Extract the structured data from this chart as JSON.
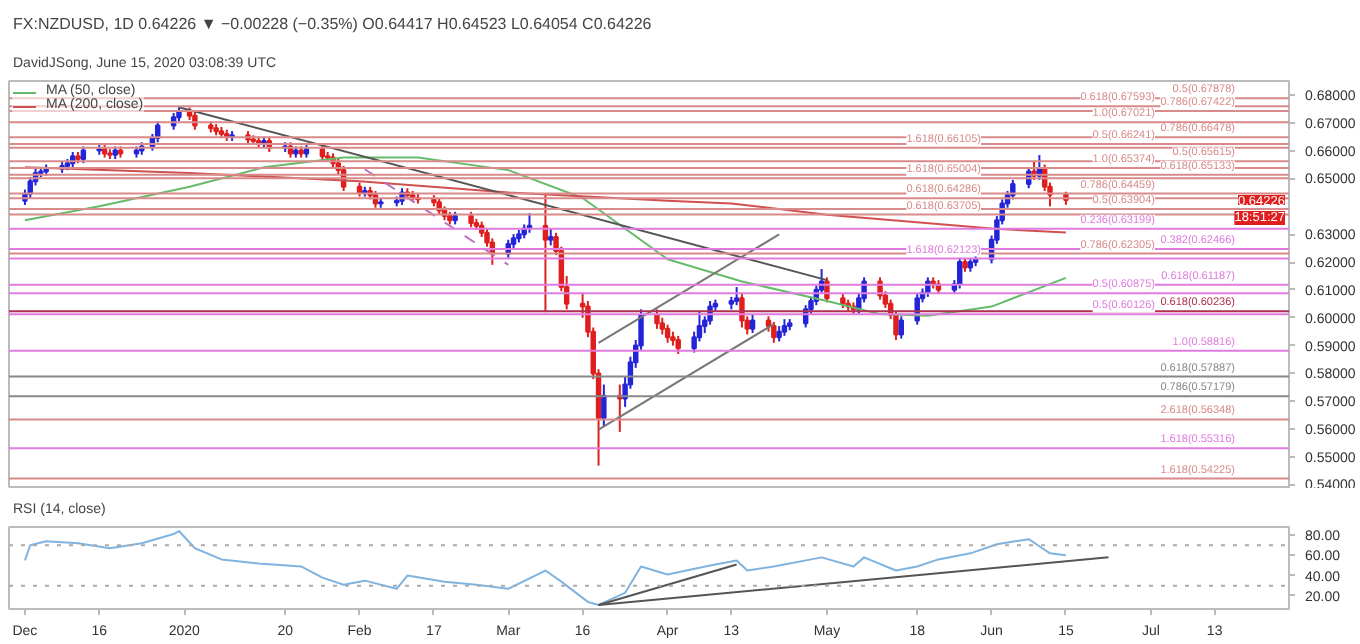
{
  "chart_data": [
    {
      "type": "candlestick",
      "title": "FX:NZDUSD, 1D  0.64226 ▼ −0.00228 (−0.35%)  O0.64417  H0.64523  L0.64054  C0.64226",
      "subtitle": "DavidJSong, June 15, 2020 03:08:39 UTC",
      "colors": [
        "#2424d8",
        "#2424d8",
        "#2424d8",
        "#2424d8",
        "#2424d8",
        "#2424d8",
        "#2424d8",
        "#2424d8",
        "#e01e1e",
        "#2424d8",
        "#2424d8",
        "#e01e1e",
        "#e01e1e",
        "#2424d8",
        "#e01e1e",
        "#2424d8",
        "#2424d8",
        "#2424d8",
        "#2424d8",
        "#2424d8",
        "#2424d8",
        "#e01e1e",
        "#e01e1e",
        "#e01e1e",
        "#e01e1e",
        "#e01e1e",
        "#e01e1e",
        "#2424d8",
        "#e01e1e",
        "#e01e1e",
        "#e01e1e",
        "#2424d8",
        "#e01e1e",
        "#2424d8",
        "#e01e1e",
        "#2424d8",
        "#e01e1e",
        "#2424d8",
        "#e01e1e",
        "#e01e1e",
        "#e01e1e",
        "#e01e1e",
        "#e01e1e",
        "#e01e1e",
        "#2424d8",
        "#e01e1e",
        "#e01e1e",
        "#2424d8",
        "#2424d8",
        "#2424d8",
        "#e01e1e",
        "#e01e1e",
        "#e01e1e",
        "#e01e1e",
        "#e01e1e",
        "#e01e1e",
        "#e01e1e",
        "#2424d8",
        "#e01e1e",
        "#e01e1e",
        "#e01e1e",
        "#e01e1e",
        "#e01e1e",
        "#2424d8",
        "#2424d8",
        "#2424d8",
        "#2424d8",
        "#2424d8",
        "#e01e1e",
        "#2424d8",
        "#e01e1e",
        "#e01e1e",
        "#e01e1e",
        "#e01e1e",
        "#e01e1e",
        "#e01e1e",
        "#e01e1e",
        "#2424d8",
        "#e01e1e",
        "#2424d8",
        "#2424d8",
        "#2424d8",
        "#2424d8",
        "#e01e1e",
        "#e01e1e",
        "#e01e1e",
        "#e01e1e",
        "#e01e1e",
        "#2424d8",
        "#2424d8",
        "#2424d8",
        "#2424d8",
        "#2424d8",
        "#2424d8",
        "#2424d8",
        "#e01e1e",
        "#e01e1e",
        "#2424d8",
        "#e01e1e",
        "#e01e1e",
        "#2424d8",
        "#2424d8",
        "#2424d8",
        "#2424d8",
        "#2424d8",
        "#2424d8",
        "#2424d8",
        "#e01e1e",
        "#e01e1e",
        "#e01e1e",
        "#e01e1e",
        "#2424d8",
        "#2424d8",
        "#e01e1e",
        "#e01e1e",
        "#e01e1e",
        "#e01e1e",
        "#2424d8",
        "#2424d8",
        "#2424d8",
        "#2424d8",
        "#e01e1e",
        "#e01e1e",
        "#2424d8",
        "#2424d8",
        "#e01e1e",
        "#2424d8",
        "#2424d8",
        "#2424d8",
        "#2424d8",
        "#2424d8",
        "#2424d8",
        "#2424d8",
        "#2424d8",
        "#e01e1e",
        "#2424d8",
        "#e01e1e",
        "#e01e1e",
        "#e01e1e"
      ],
      "x": [
        "2019-12-02",
        "2019-12-03",
        "2019-12-04",
        "2019-12-05",
        "2019-12-06",
        "2019-12-09",
        "2019-12-10",
        "2019-12-11",
        "2019-12-12",
        "2019-12-13",
        "2019-12-16",
        "2019-12-17",
        "2019-12-18",
        "2019-12-19",
        "2019-12-20",
        "2019-12-23",
        "2019-12-24",
        "2019-12-26",
        "2019-12-27",
        "2019-12-30",
        "2019-12-31",
        "2020-01-02",
        "2020-01-03",
        "2020-01-06",
        "2020-01-07",
        "2020-01-08",
        "2020-01-09",
        "2020-01-10",
        "2020-01-13",
        "2020-01-14",
        "2020-01-15",
        "2020-01-16",
        "2020-01-17",
        "2020-01-20",
        "2020-01-21",
        "2020-01-22",
        "2020-01-23",
        "2020-01-24",
        "2020-01-27",
        "2020-01-28",
        "2020-01-29",
        "2020-01-30",
        "2020-01-31",
        "2020-02-03",
        "2020-02-04",
        "2020-02-05",
        "2020-02-06",
        "2020-02-07",
        "2020-02-10",
        "2020-02-11",
        "2020-02-12",
        "2020-02-13",
        "2020-02-14",
        "2020-02-17",
        "2020-02-18",
        "2020-02-19",
        "2020-02-20",
        "2020-02-21",
        "2020-02-24",
        "2020-02-25",
        "2020-02-26",
        "2020-02-27",
        "2020-02-28",
        "2020-03-02",
        "2020-03-03",
        "2020-03-04",
        "2020-03-05",
        "2020-03-06",
        "2020-03-09",
        "2020-03-10",
        "2020-03-11",
        "2020-03-12",
        "2020-03-13",
        "2020-03-16",
        "2020-03-17",
        "2020-03-18",
        "2020-03-19",
        "2020-03-20",
        "2020-03-23",
        "2020-03-24",
        "2020-03-25",
        "2020-03-26",
        "2020-03-27",
        "2020-03-30",
        "2020-03-31",
        "2020-04-01",
        "2020-04-02",
        "2020-04-03",
        "2020-04-06",
        "2020-04-07",
        "2020-04-08",
        "2020-04-09",
        "2020-04-10",
        "2020-04-13",
        "2020-04-14",
        "2020-04-15",
        "2020-04-16",
        "2020-04-17",
        "2020-04-20",
        "2020-04-21",
        "2020-04-22",
        "2020-04-23",
        "2020-04-24",
        "2020-04-27",
        "2020-04-28",
        "2020-04-29",
        "2020-04-30",
        "2020-05-01",
        "2020-05-04",
        "2020-05-05",
        "2020-05-06",
        "2020-05-07",
        "2020-05-08",
        "2020-05-11",
        "2020-05-12",
        "2020-05-13",
        "2020-05-14",
        "2020-05-15",
        "2020-05-18",
        "2020-05-19",
        "2020-05-20",
        "2020-05-21",
        "2020-05-22",
        "2020-05-25",
        "2020-05-26",
        "2020-05-27",
        "2020-05-28",
        "2020-05-29",
        "2020-06-01",
        "2020-06-02",
        "2020-06-03",
        "2020-06-04",
        "2020-06-05",
        "2020-06-08",
        "2020-06-09",
        "2020-06-10",
        "2020-06-11",
        "2020-06-12",
        "2020-06-15"
      ],
      "ohlc": [
        [
          0.642,
          0.646,
          0.6405,
          0.6445
        ],
        [
          0.6445,
          0.6505,
          0.643,
          0.649
        ],
        [
          0.649,
          0.6535,
          0.6475,
          0.652
        ],
        [
          0.652,
          0.654,
          0.6505,
          0.6525
        ],
        [
          0.6525,
          0.655,
          0.651,
          0.6535
        ],
        [
          0.6535,
          0.656,
          0.652,
          0.6545
        ],
        [
          0.6545,
          0.657,
          0.653,
          0.6555
        ],
        [
          0.6555,
          0.6595,
          0.654,
          0.658
        ],
        [
          0.658,
          0.6595,
          0.6555,
          0.657
        ],
        [
          0.657,
          0.6615,
          0.6555,
          0.66
        ],
        [
          0.66,
          0.662,
          0.6585,
          0.6605
        ],
        [
          0.6605,
          0.662,
          0.6575,
          0.659
        ],
        [
          0.659,
          0.6605,
          0.657,
          0.6585
        ],
        [
          0.6585,
          0.6615,
          0.657,
          0.66
        ],
        [
          0.66,
          0.6615,
          0.6575,
          0.659
        ],
        [
          0.659,
          0.6615,
          0.6575,
          0.66
        ],
        [
          0.66,
          0.663,
          0.6585,
          0.6615
        ],
        [
          0.6615,
          0.666,
          0.66,
          0.6645
        ],
        [
          0.6645,
          0.6705,
          0.663,
          0.669
        ],
        [
          0.669,
          0.6735,
          0.6675,
          0.672
        ],
        [
          0.672,
          0.6756,
          0.6705,
          0.674
        ],
        [
          0.674,
          0.6755,
          0.671,
          0.6725
        ],
        [
          0.6725,
          0.674,
          0.6675,
          0.669
        ],
        [
          0.669,
          0.6705,
          0.6665,
          0.668
        ],
        [
          0.668,
          0.6695,
          0.6655,
          0.667
        ],
        [
          0.667,
          0.6685,
          0.6645,
          0.666
        ],
        [
          0.666,
          0.6675,
          0.6635,
          0.665
        ],
        [
          0.665,
          0.667,
          0.6635,
          0.6655
        ],
        [
          0.6655,
          0.667,
          0.6625,
          0.664
        ],
        [
          0.664,
          0.6655,
          0.662,
          0.6635
        ],
        [
          0.6635,
          0.665,
          0.661,
          0.6625
        ],
        [
          0.6625,
          0.665,
          0.661,
          0.6635
        ],
        [
          0.6635,
          0.665,
          0.6595,
          0.661
        ],
        [
          0.661,
          0.663,
          0.6595,
          0.6615
        ],
        [
          0.6615,
          0.663,
          0.6575,
          0.659
        ],
        [
          0.659,
          0.6615,
          0.6575,
          0.66
        ],
        [
          0.66,
          0.6615,
          0.6575,
          0.659
        ],
        [
          0.659,
          0.662,
          0.6575,
          0.6605
        ],
        [
          0.6605,
          0.662,
          0.6565,
          0.658
        ],
        [
          0.658,
          0.6595,
          0.656,
          0.6575
        ],
        [
          0.6575,
          0.659,
          0.654,
          0.6555
        ],
        [
          0.6555,
          0.657,
          0.6515,
          0.653
        ],
        [
          0.653,
          0.6545,
          0.6455,
          0.647
        ],
        [
          0.647,
          0.6485,
          0.6435,
          0.645
        ],
        [
          0.645,
          0.647,
          0.6435,
          0.6455
        ],
        [
          0.6455,
          0.647,
          0.6425,
          0.644
        ],
        [
          0.644,
          0.6455,
          0.6395,
          0.641
        ],
        [
          0.641,
          0.643,
          0.6395,
          0.6415
        ],
        [
          0.6415,
          0.6435,
          0.64,
          0.642
        ],
        [
          0.642,
          0.6465,
          0.6405,
          0.645
        ],
        [
          0.645,
          0.6465,
          0.6425,
          0.644
        ],
        [
          0.644,
          0.6455,
          0.6415,
          0.643
        ],
        [
          0.643,
          0.6445,
          0.641,
          0.6425
        ],
        [
          0.6425,
          0.644,
          0.64,
          0.6415
        ],
        [
          0.6415,
          0.643,
          0.637,
          0.6385
        ],
        [
          0.6385,
          0.64,
          0.635,
          0.6365
        ],
        [
          0.6365,
          0.638,
          0.6335,
          0.635
        ],
        [
          0.635,
          0.638,
          0.6335,
          0.6365
        ],
        [
          0.6365,
          0.638,
          0.6325,
          0.634
        ],
        [
          0.634,
          0.6355,
          0.6315,
          0.633
        ],
        [
          0.633,
          0.6345,
          0.629,
          0.6305
        ],
        [
          0.6305,
          0.632,
          0.6255,
          0.627
        ],
        [
          0.627,
          0.6285,
          0.619,
          0.623
        ],
        [
          0.623,
          0.628,
          0.6215,
          0.6265
        ],
        [
          0.6265,
          0.63,
          0.625,
          0.6285
        ],
        [
          0.6285,
          0.6315,
          0.627,
          0.63
        ],
        [
          0.63,
          0.6335,
          0.6285,
          0.632
        ],
        [
          0.632,
          0.6375,
          0.6305,
          0.633
        ],
        [
          0.633,
          0.644,
          0.602,
          0.628
        ],
        [
          0.628,
          0.632,
          0.626,
          0.629
        ],
        [
          0.629,
          0.6305,
          0.6225,
          0.624
        ],
        [
          0.624,
          0.6255,
          0.6095,
          0.611
        ],
        [
          0.611,
          0.615,
          0.603,
          0.605
        ],
        [
          0.605,
          0.609,
          0.6,
          0.604
        ],
        [
          0.604,
          0.606,
          0.593,
          0.595
        ],
        [
          0.595,
          0.5965,
          0.578,
          0.58
        ],
        [
          0.58,
          0.5815,
          0.5469,
          0.564
        ],
        [
          0.564,
          0.576,
          0.561,
          0.572
        ],
        [
          0.572,
          0.576,
          0.559,
          0.571
        ],
        [
          0.571,
          0.579,
          0.568,
          0.576
        ],
        [
          0.576,
          0.586,
          0.5745,
          0.584
        ],
        [
          0.584,
          0.592,
          0.582,
          0.59
        ],
        [
          0.59,
          0.603,
          0.5885,
          0.601
        ],
        [
          0.601,
          0.603,
          0.596,
          0.598
        ],
        [
          0.598,
          0.6,
          0.594,
          0.596
        ],
        [
          0.596,
          0.5975,
          0.591,
          0.593
        ],
        [
          0.593,
          0.595,
          0.59,
          0.592
        ],
        [
          0.592,
          0.5935,
          0.587,
          0.589
        ],
        [
          0.589,
          0.595,
          0.5875,
          0.593
        ],
        [
          0.593,
          0.602,
          0.5915,
          0.597
        ],
        [
          0.597,
          0.6005,
          0.5945,
          0.599
        ],
        [
          0.599,
          0.606,
          0.5975,
          0.604
        ],
        [
          0.604,
          0.6065,
          0.6025,
          0.605
        ],
        [
          0.605,
          0.6075,
          0.603,
          0.606
        ],
        [
          0.606,
          0.611,
          0.6045,
          0.607
        ],
        [
          0.607,
          0.6085,
          0.5965,
          0.599
        ],
        [
          0.599,
          0.6005,
          0.594,
          0.596
        ],
        [
          0.596,
          0.601,
          0.5945,
          0.599
        ],
        [
          0.599,
          0.6005,
          0.595,
          0.597
        ],
        [
          0.597,
          0.5985,
          0.591,
          0.593
        ],
        [
          0.593,
          0.597,
          0.5915,
          0.595
        ],
        [
          0.595,
          0.5995,
          0.5935,
          0.597
        ],
        [
          0.597,
          0.5995,
          0.5955,
          0.598
        ],
        [
          0.598,
          0.6045,
          0.5965,
          0.603
        ],
        [
          0.603,
          0.6075,
          0.6015,
          0.606
        ],
        [
          0.606,
          0.6115,
          0.6045,
          0.61
        ],
        [
          0.61,
          0.6175,
          0.6085,
          0.613
        ],
        [
          0.613,
          0.6145,
          0.6055,
          0.607
        ],
        [
          0.607,
          0.6085,
          0.6035,
          0.605
        ],
        [
          0.605,
          0.6065,
          0.6025,
          0.604
        ],
        [
          0.604,
          0.6055,
          0.6015,
          0.603
        ],
        [
          0.603,
          0.6085,
          0.6015,
          0.607
        ],
        [
          0.607,
          0.6145,
          0.6055,
          0.613
        ],
        [
          0.613,
          0.6145,
          0.6065,
          0.608
        ],
        [
          0.608,
          0.6095,
          0.6035,
          0.605
        ],
        [
          0.605,
          0.6065,
          0.5995,
          0.601
        ],
        [
          0.601,
          0.6025,
          0.592,
          0.594
        ],
        [
          0.594,
          0.6005,
          0.5925,
          0.599
        ],
        [
          0.599,
          0.6085,
          0.5975,
          0.607
        ],
        [
          0.607,
          0.6105,
          0.6055,
          0.609
        ],
        [
          0.609,
          0.6145,
          0.6075,
          0.613
        ],
        [
          0.613,
          0.6145,
          0.6105,
          0.612
        ],
        [
          0.612,
          0.6135,
          0.6085,
          0.61
        ],
        [
          0.61,
          0.6135,
          0.6085,
          0.612
        ],
        [
          0.612,
          0.6215,
          0.6105,
          0.62
        ],
        [
          0.62,
          0.6215,
          0.6165,
          0.618
        ],
        [
          0.618,
          0.6215,
          0.6165,
          0.62
        ],
        [
          0.62,
          0.6225,
          0.6185,
          0.621
        ],
        [
          0.621,
          0.6295,
          0.6195,
          0.628
        ],
        [
          0.628,
          0.6365,
          0.6265,
          0.635
        ],
        [
          0.635,
          0.6425,
          0.6335,
          0.641
        ],
        [
          0.641,
          0.6455,
          0.6395,
          0.644
        ],
        [
          0.644,
          0.6495,
          0.6425,
          0.648
        ],
        [
          0.648,
          0.654,
          0.6465,
          0.6525
        ],
        [
          0.6525,
          0.656,
          0.6495,
          0.651
        ],
        [
          0.651,
          0.6584,
          0.6495,
          0.6535
        ],
        [
          0.6535,
          0.655,
          0.6455,
          0.647
        ],
        [
          0.647,
          0.6485,
          0.64,
          0.6442
        ],
        [
          0.64417,
          0.64523,
          0.64054,
          0.64226
        ]
      ],
      "series": [
        {
          "name": "MA (50, close)",
          "type": "line",
          "color": "#66bb6a",
          "x": [
            "2019-12-02",
            "2019-12-16",
            "2020-01-02",
            "2020-01-16",
            "2020-01-31",
            "2020-02-14",
            "2020-03-02",
            "2020-03-16",
            "2020-04-01",
            "2020-04-15",
            "2020-05-01",
            "2020-05-11",
            "2020-05-20",
            "2020-06-01",
            "2020-06-15"
          ],
          "values": [
            0.635,
            0.64,
            0.647,
            0.654,
            0.6575,
            0.6575,
            0.653,
            0.643,
            0.621,
            0.613,
            0.606,
            0.6013,
            0.6007,
            0.604,
            0.6143
          ]
        },
        {
          "name": "MA (200, close)",
          "type": "line",
          "color": "#d05050",
          "x": [
            "2019-12-02",
            "2020-01-02",
            "2020-02-03",
            "2020-03-02",
            "2020-04-01",
            "2020-04-13",
            "2020-05-01",
            "2020-06-01",
            "2020-06-15"
          ],
          "values": [
            0.654,
            0.652,
            0.649,
            0.645,
            0.642,
            0.641,
            0.637,
            0.632,
            0.6306
          ]
        },
        {
          "type": "line",
          "color": "#555555",
          "x": [
            "2019-12-31",
            "2020-05-01"
          ],
          "values": [
            0.6756,
            0.6135
          ]
        },
        {
          "type": "line",
          "color": "#777777",
          "x": [
            "2020-03-19",
            "2020-04-21"
          ],
          "values": [
            0.5598,
            0.5977
          ]
        },
        {
          "type": "line",
          "color": "#777777",
          "x": [
            "2020-03-19",
            "2020-04-22"
          ],
          "values": [
            0.591,
            0.6299
          ]
        },
        {
          "type": "line",
          "color": "#c070c0",
          "line_style": "dashed",
          "x": [
            "2020-02-04",
            "2020-03-02"
          ],
          "values": [
            0.6533,
            0.619
          ]
        }
      ],
      "legend": "top left",
      "tick_labels": "y",
      "xlim": [
        "2019-11-29",
        "2020-07-27"
      ],
      "ylim": [
        0.5385,
        0.685
      ],
      "yticks": [
        {
          "value": 0.54,
          "label": "0.54000"
        },
        {
          "value": 0.55,
          "label": "0.55000"
        },
        {
          "value": 0.56,
          "label": "0.56000"
        },
        {
          "value": 0.57,
          "label": "0.57000"
        },
        {
          "value": 0.58,
          "label": "0.58000"
        },
        {
          "value": 0.59,
          "label": "0.59000"
        },
        {
          "value": 0.6,
          "label": "0.60000"
        },
        {
          "value": 0.61,
          "label": "0.61000"
        },
        {
          "value": 0.62,
          "label": "0.62000"
        },
        {
          "value": 0.63,
          "label": "0.63000"
        },
        {
          "value": 0.65,
          "label": "0.65000"
        },
        {
          "value": 0.66,
          "label": "0.66000"
        },
        {
          "value": 0.67,
          "label": "0.67000"
        },
        {
          "value": 0.68,
          "label": "0.68000"
        }
      ],
      "ref_lines": [
        {
          "axis": "y",
          "value": 0.67878,
          "label": "0.5(0.67878)",
          "color": "#d98a8a"
        },
        {
          "axis": "y",
          "value": 0.67593,
          "label": "0.618(0.67593)",
          "color": "#d98a8a"
        },
        {
          "axis": "y",
          "value": 0.67422,
          "label": "0.786(0.67422)",
          "color": "#d98a8a"
        },
        {
          "axis": "y",
          "value": 0.67021,
          "label": "1.0(0.67021)",
          "color": "#d98a8a"
        },
        {
          "axis": "y",
          "value": 0.66478,
          "label": "0.786(0.66478)",
          "color": "#d98a8a"
        },
        {
          "axis": "y",
          "value": 0.66241,
          "label": "0.5(0.66241)",
          "color": "#d98a8a"
        },
        {
          "axis": "y",
          "value": 0.66105,
          "label": "1.618(0.66105)",
          "color": "#d98a8a"
        },
        {
          "axis": "y",
          "value": 0.65615,
          "label": "0.5(0.65615)",
          "color": "#d98a8a"
        },
        {
          "axis": "y",
          "value": 0.65374,
          "label": "1.0(0.65374)",
          "color": "#d98a8a"
        },
        {
          "axis": "y",
          "value": 0.65133,
          "label": "0.618(0.65133)",
          "color": "#d98a8a"
        },
        {
          "axis": "y",
          "value": 0.65004,
          "label": "1.618(0.65004)",
          "color": "#d98a8a"
        },
        {
          "axis": "y",
          "value": 0.64459,
          "label": "0.786(0.64459)",
          "color": "#d98a8a"
        },
        {
          "axis": "y",
          "value": 0.64286,
          "label": "0.618(0.64286)",
          "color": "#d98a8a"
        },
        {
          "axis": "y",
          "value": 0.63904,
          "label": "0.5(0.63904)",
          "color": "#d98a8a"
        },
        {
          "axis": "y",
          "value": 0.63705,
          "label": "0.618(0.63705)",
          "color": "#d98a8a"
        },
        {
          "axis": "y",
          "value": 0.63199,
          "label": "0.236(0.63199)",
          "color": "#e07be0"
        },
        {
          "axis": "y",
          "value": 0.62466,
          "label": "0.382(0.62466)",
          "color": "#e07be0"
        },
        {
          "axis": "y",
          "value": 0.62305,
          "label": "0.786(0.62305)",
          "color": "#d98a8a"
        },
        {
          "axis": "y",
          "value": 0.62123,
          "label": "1.618(0.62123)",
          "color": "#e07be0"
        },
        {
          "axis": "y",
          "value": 0.61187,
          "label": "0.618(0.61187)",
          "color": "#e07be0"
        },
        {
          "axis": "y",
          "value": 0.60875,
          "label": "0.5(0.60875)",
          "color": "#e07be0"
        },
        {
          "axis": "y",
          "value": 0.60236,
          "label": "0.618(0.60236)",
          "color": "#b03050"
        },
        {
          "axis": "y",
          "value": 0.60126,
          "label": "0.5(0.60126)",
          "color": "#e07be0"
        },
        {
          "axis": "y",
          "value": 0.58816,
          "label": "1.0(0.58816)",
          "color": "#e07be0"
        },
        {
          "axis": "y",
          "value": 0.57887,
          "label": "0.618(0.57887)",
          "color": "#888888"
        },
        {
          "axis": "y",
          "value": 0.57179,
          "label": "0.786(0.57179)",
          "color": "#888888"
        },
        {
          "axis": "y",
          "value": 0.56348,
          "label": "2.618(0.56348)",
          "color": "#d98a8a"
        },
        {
          "axis": "y",
          "value": 0.55316,
          "label": "1.618(0.55316)",
          "color": "#e07be0"
        },
        {
          "axis": "y",
          "value": 0.54225,
          "label": "1.618(0.54225)",
          "color": "#d98a8a"
        }
      ],
      "annotations": [
        {
          "text": "0.64226",
          "y": 0.64226
        },
        "18:51:27"
      ]
    },
    {
      "type": "line",
      "title": "RSI (14, close)",
      "color": "#7fb3e0",
      "x": [
        "2019-12-02",
        "2019-12-03",
        "2019-12-06",
        "2019-12-12",
        "2019-12-18",
        "2019-12-24",
        "2019-12-30",
        "2019-12-31",
        "2020-01-03",
        "2020-01-08",
        "2020-01-15",
        "2020-01-23",
        "2020-01-27",
        "2020-01-31",
        "2020-02-04",
        "2020-02-10",
        "2020-02-12",
        "2020-02-19",
        "2020-02-25",
        "2020-03-02",
        "2020-03-09",
        "2020-03-12",
        "2020-03-17",
        "2020-03-19",
        "2020-03-24",
        "2020-03-27",
        "2020-04-01",
        "2020-04-09",
        "2020-04-14",
        "2020-04-16",
        "2020-04-21",
        "2020-04-30",
        "2020-05-06",
        "2020-05-08",
        "2020-05-14",
        "2020-05-18",
        "2020-05-22",
        "2020-05-28",
        "2020-06-02",
        "2020-06-08",
        "2020-06-10",
        "2020-06-12",
        "2020-06-15"
      ],
      "values": [
        55,
        70,
        74,
        72,
        67,
        72,
        81,
        84,
        67,
        56,
        52,
        49,
        38,
        31,
        35,
        27,
        40,
        34,
        31,
        27,
        45,
        34,
        14,
        11,
        23,
        49,
        41,
        50,
        55,
        45,
        49,
        58,
        49,
        58,
        45,
        49,
        56,
        62,
        71,
        76,
        69,
        62,
        60
      ],
      "series": [
        {
          "type": "line",
          "color": "#555555",
          "x": [
            "2020-03-19",
            "2020-04-14"
          ],
          "values": [
            11,
            51
          ]
        },
        {
          "type": "line",
          "color": "#555555",
          "x": [
            "2020-03-19",
            "2020-06-23"
          ],
          "values": [
            11,
            58
          ]
        }
      ],
      "xlim": [
        "2019-11-29",
        "2020-07-27"
      ],
      "xticks": [
        {
          "value": "2019-12-02",
          "label": "Dec"
        },
        {
          "value": "2019-12-16",
          "label": "16"
        },
        {
          "value": "2020-01-01",
          "label": "2020"
        },
        {
          "value": "2020-01-20",
          "label": "20"
        },
        {
          "value": "2020-02-03",
          "label": "Feb"
        },
        {
          "value": "2020-02-17",
          "label": "17"
        },
        {
          "value": "2020-03-02",
          "label": "Mar"
        },
        {
          "value": "2020-03-16",
          "label": "16"
        },
        {
          "value": "2020-04-01",
          "label": "Apr"
        },
        {
          "value": "2020-04-13",
          "label": "13"
        },
        {
          "value": "2020-05-01",
          "label": "May"
        },
        {
          "value": "2020-05-18",
          "label": "18"
        },
        {
          "value": "2020-06-01",
          "label": "Jun"
        },
        {
          "value": "2020-06-15",
          "label": "15"
        },
        {
          "value": "2020-07-01",
          "label": "Jul"
        },
        {
          "value": "2020-07-13",
          "label": "13"
        }
      ],
      "ylim": [
        7,
        88
      ],
      "yticks": [
        {
          "value": 20,
          "label": "20.00"
        },
        {
          "value": 40,
          "label": "40.00"
        },
        {
          "value": 60,
          "label": "60.00"
        },
        {
          "value": 80,
          "label": "80.00"
        }
      ],
      "ref_lines": [
        {
          "axis": "y",
          "value": 70,
          "color": "#aaaaaa",
          "line_style": "dotted"
        },
        {
          "axis": "y",
          "value": 30,
          "color": "#aaaaaa",
          "line_style": "dotted"
        }
      ]
    }
  ]
}
